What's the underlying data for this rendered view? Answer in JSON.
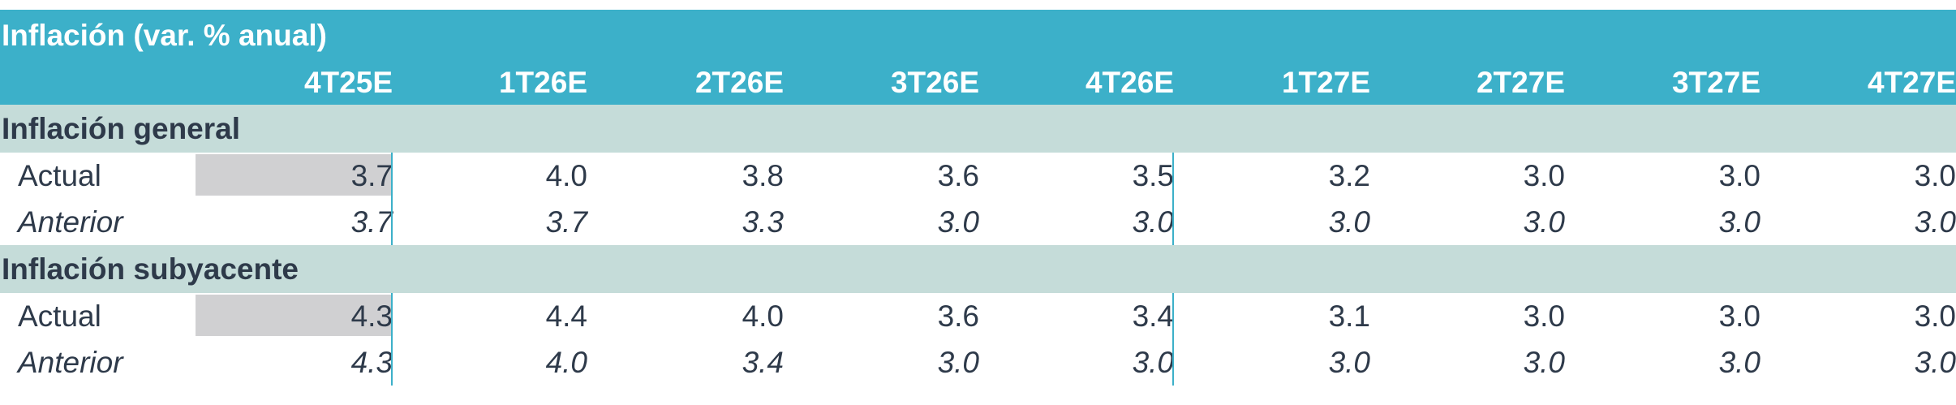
{
  "table": {
    "title": "Inflación (var. % anual)",
    "columns": [
      "4T25E",
      "1T26E",
      "2T26E",
      "3T26E",
      "4T26E",
      "1T27E",
      "2T27E",
      "3T27E",
      "4T27E"
    ],
    "sections": [
      {
        "title": "Inflación general",
        "rows": [
          {
            "label": "Actual",
            "values": [
              "3.7",
              "4.0",
              "3.8",
              "3.6",
              "3.5",
              "3.2",
              "3.0",
              "3.0",
              "3.0"
            ]
          },
          {
            "label": "Anterior",
            "values": [
              "3.7",
              "3.7",
              "3.3",
              "3.0",
              "3.0",
              "3.0",
              "3.0",
              "3.0",
              "3.0"
            ]
          }
        ]
      },
      {
        "title": "Inflación subyacente",
        "rows": [
          {
            "label": "Actual",
            "values": [
              "4.3",
              "4.4",
              "4.0",
              "3.6",
              "3.4",
              "3.1",
              "3.0",
              "3.0",
              "3.0"
            ]
          },
          {
            "label": "Anterior",
            "values": [
              "4.3",
              "4.0",
              "3.4",
              "3.0",
              "3.0",
              "3.0",
              "3.0",
              "3.0",
              "3.0"
            ]
          }
        ]
      }
    ]
  }
}
